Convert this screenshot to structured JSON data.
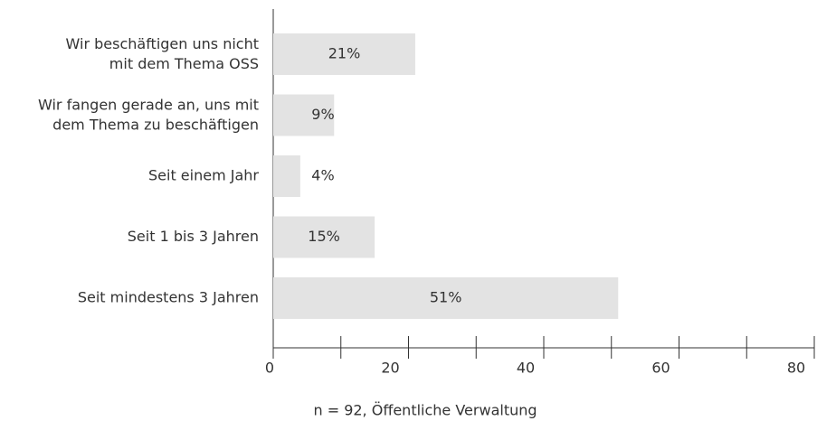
{
  "chart_data": {
    "type": "bar",
    "orientation": "horizontal",
    "categories": [
      "Wir beschäftigen uns nicht\nmit dem Thema OSS",
      "Wir fangen gerade an, uns mit\ndem Thema zu beschäftigen",
      "Seit einem Jahr",
      "Seit 1 bis 3 Jahren",
      "Seit mindestens 3 Jahren"
    ],
    "values": [
      21,
      9,
      4,
      15,
      51
    ],
    "value_labels": [
      "21%",
      "9%",
      "4%",
      "15%",
      "51%"
    ],
    "color": "#e3e3e3",
    "xlim": [
      0,
      80
    ],
    "xticks": [
      0,
      20,
      40,
      60,
      80
    ],
    "minor_xticks": [
      10,
      30,
      50,
      70
    ],
    "note": "n = 92, Öffentliche Verwaltung"
  }
}
